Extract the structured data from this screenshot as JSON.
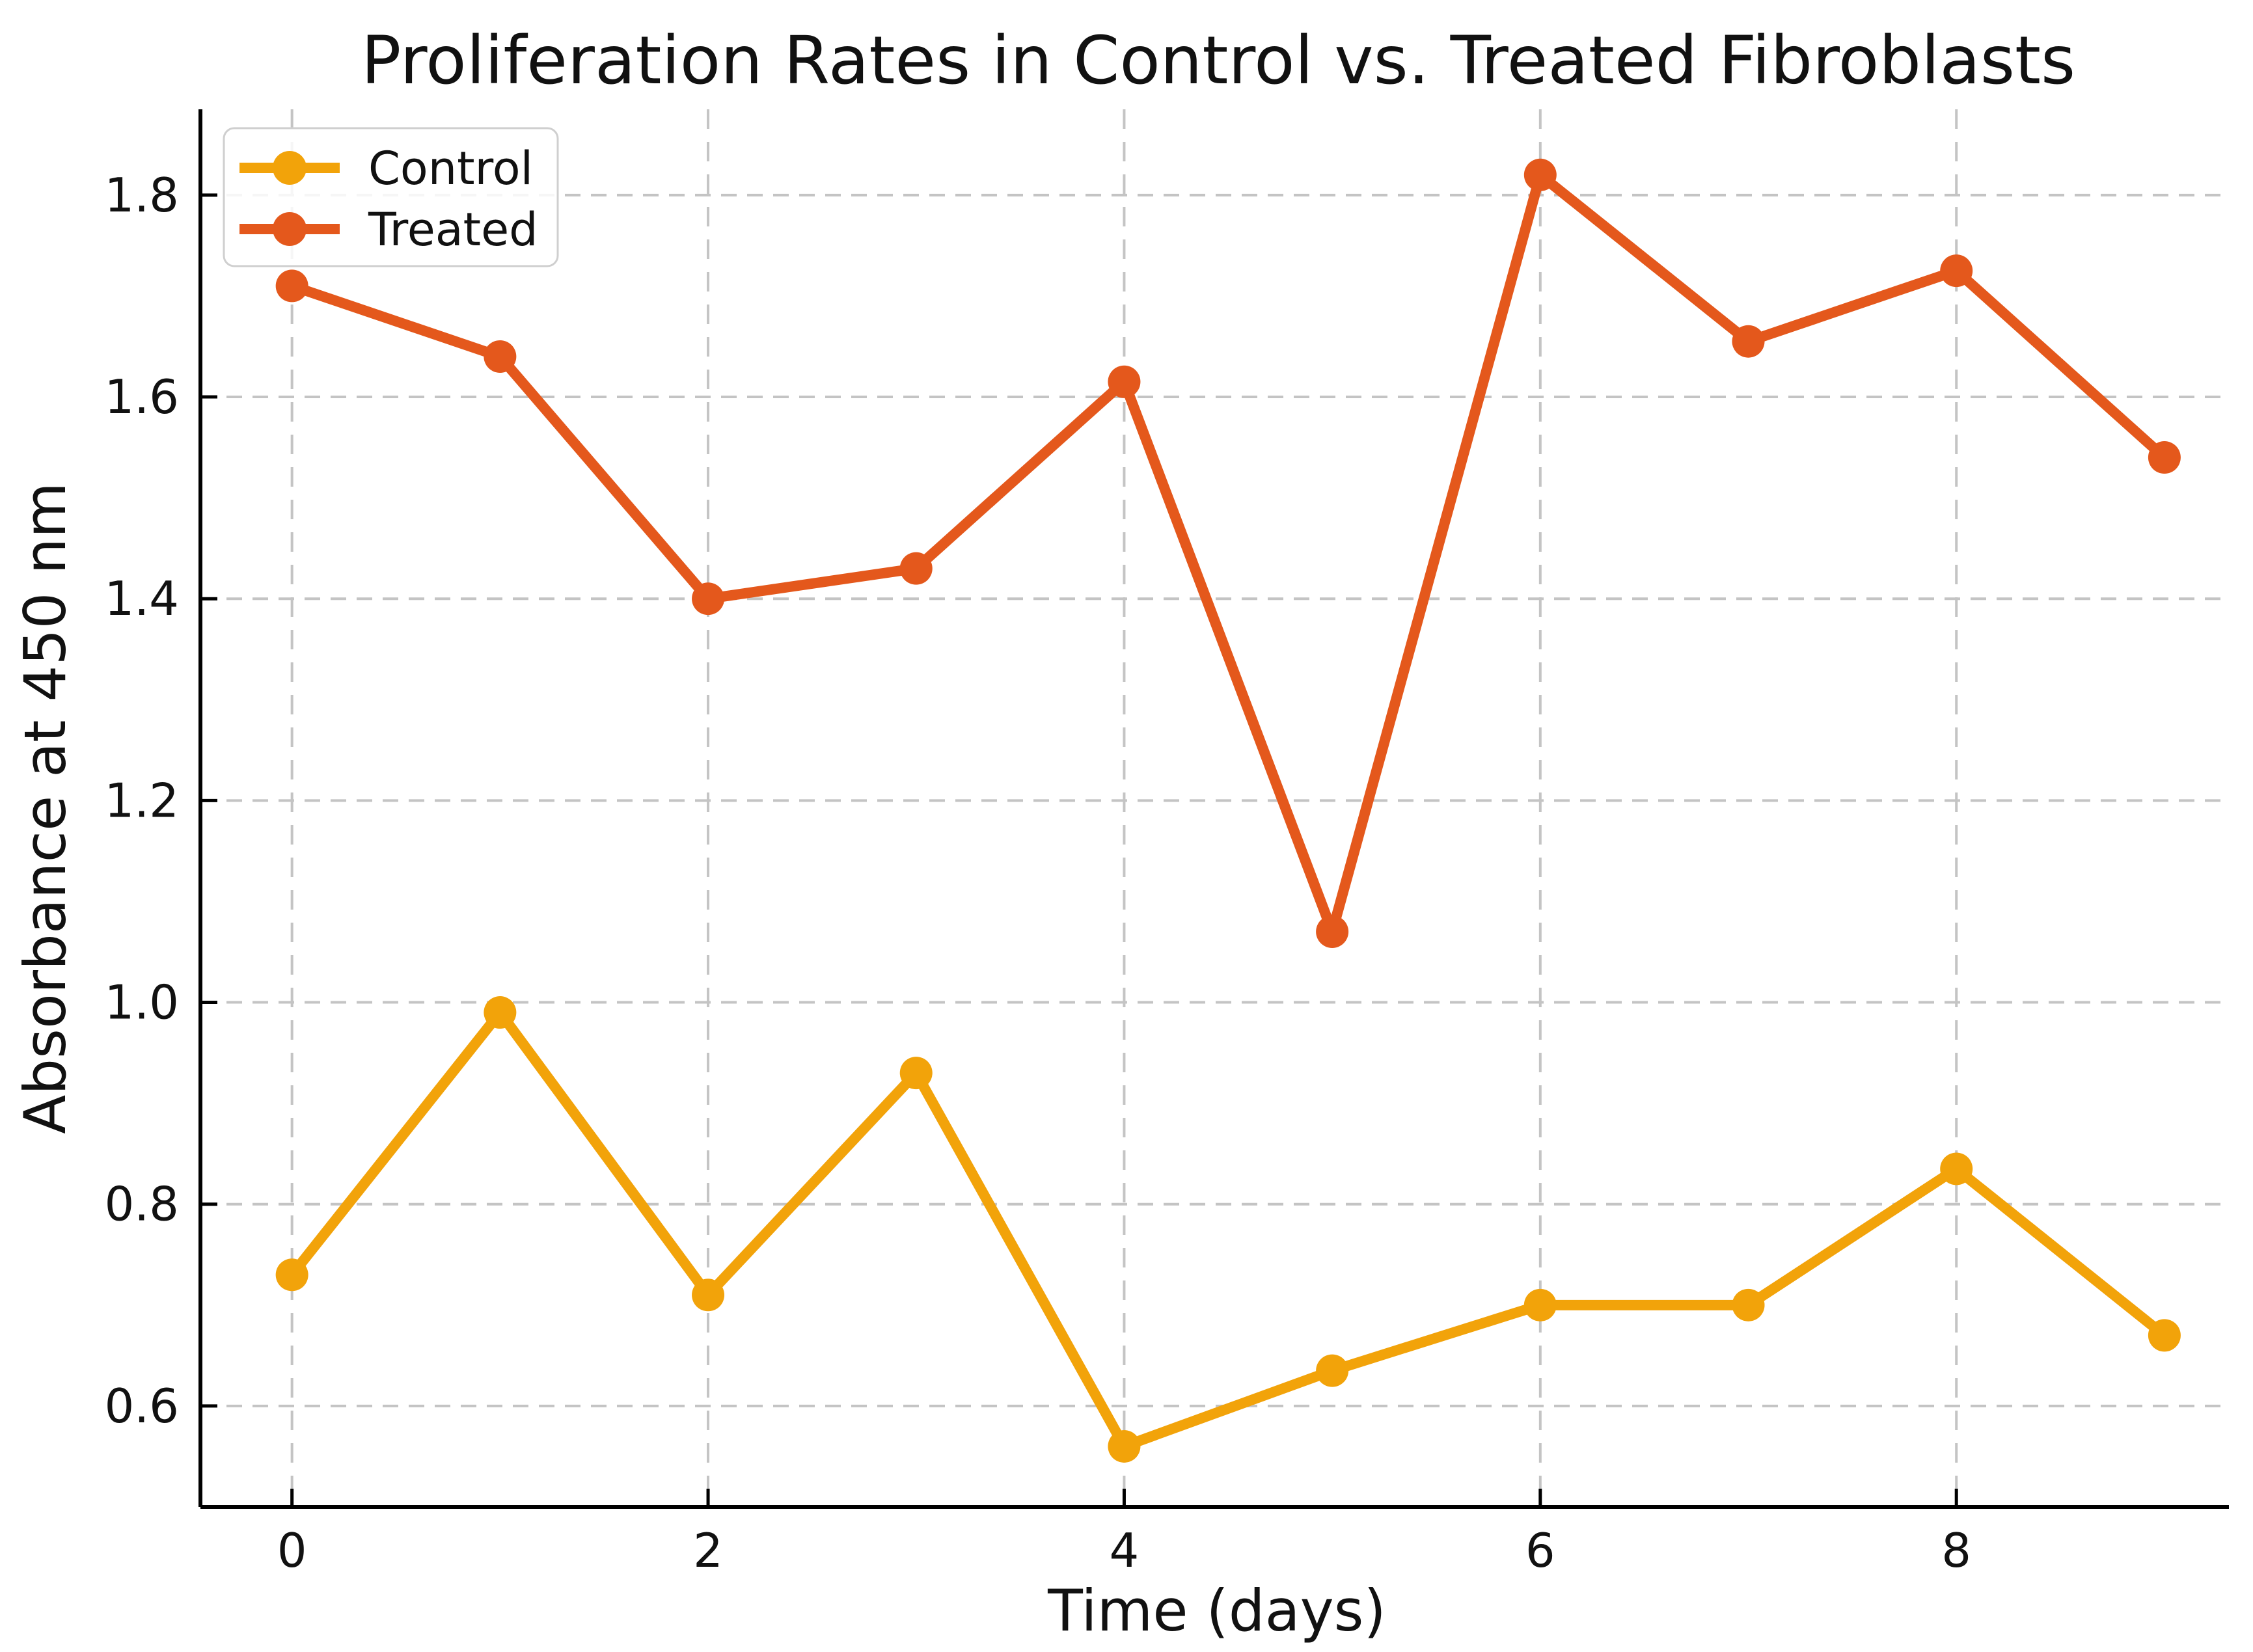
{
  "figure_title": "Proliferation Rates in Control vs. Treated Fibroblasts",
  "chart_data": {
    "type": "line",
    "title": "Proliferation Rates in Control vs. Treated Fibroblasts",
    "xlabel": "Time (days)",
    "ylabel": "Absorbance at 450 nm",
    "x": [
      0,
      1,
      2,
      3,
      4,
      5,
      6,
      7,
      8,
      9
    ],
    "series": [
      {
        "name": "Control",
        "color": "#F2A30A",
        "values": [
          0.73,
          0.99,
          0.71,
          0.93,
          0.56,
          0.635,
          0.7,
          0.7,
          0.835,
          0.67
        ]
      },
      {
        "name": "Treated",
        "color": "#E4581C",
        "values": [
          1.71,
          1.64,
          1.4,
          1.43,
          1.615,
          1.07,
          1.82,
          1.655,
          1.725,
          1.54
        ]
      }
    ],
    "xticks": [
      0,
      2,
      4,
      6,
      8
    ],
    "yticks": [
      0.6,
      0.8,
      1.0,
      1.2,
      1.4,
      1.6,
      1.8
    ],
    "xlim": [
      -0.44,
      9.31
    ],
    "ylim": [
      0.5,
      1.885
    ],
    "grid": true,
    "grid_style": "dashed",
    "legend_position": "upper left",
    "legend_entries": [
      "Control",
      "Treated"
    ]
  },
  "colors": {
    "control": "#F2A30A",
    "treated": "#E4581C",
    "gridline": "#C4C4C4",
    "spine": "#000000",
    "text": "#111111",
    "legend_border": "#CFCFCF",
    "background": "#FFFFFF"
  }
}
